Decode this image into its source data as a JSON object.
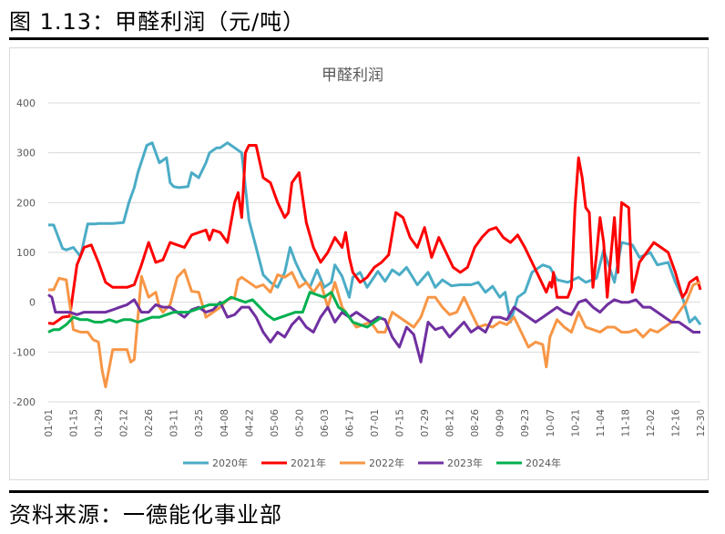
{
  "figure": {
    "title": "图 1.13：甲醛利润（元/吨）",
    "source": "资料来源：一德能化事业部"
  },
  "chart_data": {
    "type": "line",
    "title": "甲醛利润",
    "xlabel": "",
    "ylabel": "",
    "ylim": [
      -200,
      400
    ],
    "yticks": [
      -200,
      -100,
      0,
      100,
      200,
      300,
      400
    ],
    "xticks": [
      "01-01",
      "01-15",
      "01-29",
      "02-12",
      "02-26",
      "03-11",
      "03-25",
      "04-08",
      "04-22",
      "05-06",
      "05-20",
      "06-03",
      "06-17",
      "07-01",
      "07-15",
      "07-29",
      "08-12",
      "08-26",
      "09-09",
      "09-23",
      "10-07",
      "10-21",
      "11-04",
      "11-18",
      "12-02",
      "12-16",
      "12-30"
    ],
    "x_unit": "day-of-year index (0 = 01-01, 364 = 12-30)",
    "legend_position": "bottom",
    "series": [
      {
        "name": "2020年",
        "color": "#4BACC6",
        "x": [
          0,
          3,
          8,
          10,
          14,
          18,
          22,
          26,
          28,
          32,
          36,
          42,
          45,
          48,
          50,
          55,
          58,
          62,
          66,
          68,
          70,
          73,
          78,
          80,
          84,
          88,
          90,
          94,
          96,
          100,
          104,
          108,
          112,
          116,
          120,
          124,
          128,
          132,
          135,
          138,
          142,
          146,
          150,
          154,
          158,
          160,
          164,
          168,
          170,
          174,
          178,
          184,
          188,
          192,
          196,
          200,
          206,
          212,
          216,
          220,
          225,
          230,
          236,
          240,
          244,
          248,
          252,
          255,
          258,
          262,
          266,
          270,
          276,
          280,
          284,
          290,
          296,
          300,
          306,
          310,
          316,
          320,
          326,
          330,
          336,
          340,
          346,
          350,
          354,
          358,
          361,
          364
        ],
        "values": [
          155,
          155,
          108,
          105,
          110,
          92,
          157,
          157,
          158,
          158,
          158,
          160,
          200,
          230,
          260,
          315,
          320,
          280,
          290,
          240,
          232,
          230,
          232,
          260,
          250,
          280,
          300,
          310,
          310,
          320,
          310,
          300,
          165,
          110,
          55,
          40,
          30,
          60,
          110,
          80,
          50,
          30,
          65,
          30,
          40,
          75,
          52,
          10,
          50,
          60,
          30,
          62,
          42,
          65,
          55,
          70,
          35,
          60,
          30,
          45,
          33,
          35,
          35,
          40,
          20,
          32,
          10,
          20,
          -40,
          10,
          20,
          60,
          75,
          70,
          45,
          40,
          50,
          40,
          48,
          105,
          40,
          120,
          115,
          90,
          100,
          75,
          80,
          40,
          10,
          -40,
          -30,
          -45
        ]
      },
      {
        "name": "2021年",
        "color": "#FF0000",
        "x": [
          0,
          3,
          8,
          12,
          16,
          20,
          24,
          28,
          32,
          36,
          40,
          44,
          48,
          52,
          56,
          60,
          64,
          68,
          72,
          76,
          80,
          84,
          88,
          90,
          92,
          96,
          100,
          104,
          106,
          108,
          110,
          112,
          116,
          120,
          124,
          128,
          132,
          134,
          136,
          140,
          144,
          148,
          152,
          156,
          160,
          164,
          166,
          168,
          170,
          174,
          178,
          182,
          186,
          190,
          194,
          198,
          202,
          206,
          210,
          214,
          218,
          222,
          226,
          230,
          234,
          238,
          242,
          246,
          250,
          254,
          258,
          262,
          266,
          270,
          274,
          278,
          280,
          281,
          282,
          284,
          286,
          288,
          290,
          292,
          294,
          296,
          298,
          300,
          302,
          304,
          306,
          308,
          310,
          312,
          314,
          316,
          318,
          320,
          322,
          324,
          326,
          330,
          334,
          338,
          342,
          346,
          350,
          354,
          356,
          358,
          360,
          362,
          364
        ],
        "values": [
          -42,
          -43,
          -30,
          -28,
          75,
          110,
          115,
          80,
          40,
          30,
          30,
          30,
          35,
          75,
          120,
          80,
          85,
          120,
          115,
          110,
          135,
          140,
          145,
          125,
          145,
          140,
          120,
          200,
          220,
          170,
          300,
          315,
          315,
          250,
          240,
          200,
          170,
          180,
          240,
          260,
          160,
          110,
          80,
          100,
          130,
          110,
          140,
          90,
          60,
          40,
          50,
          70,
          80,
          95,
          180,
          170,
          130,
          110,
          150,
          90,
          130,
          100,
          70,
          60,
          70,
          110,
          130,
          145,
          150,
          130,
          120,
          135,
          110,
          80,
          50,
          20,
          40,
          30,
          60,
          10,
          10,
          10,
          10,
          30,
          190,
          290,
          250,
          190,
          180,
          30,
          95,
          170,
          120,
          10,
          90,
          170,
          60,
          200,
          195,
          190,
          20,
          80,
          100,
          120,
          110,
          100,
          60,
          10,
          20,
          40,
          45,
          50,
          25
        ]
      },
      {
        "name": "2022年",
        "color": "#F79646",
        "x": [
          0,
          3,
          6,
          10,
          14,
          18,
          22,
          25,
          28,
          30,
          32,
          36,
          40,
          44,
          46,
          48,
          52,
          56,
          60,
          62,
          64,
          68,
          72,
          76,
          80,
          84,
          88,
          92,
          96,
          100,
          104,
          106,
          108,
          112,
          116,
          120,
          124,
          128,
          132,
          136,
          140,
          144,
          148,
          152,
          156,
          160,
          164,
          168,
          172,
          176,
          180,
          184,
          188,
          192,
          196,
          200,
          204,
          208,
          212,
          216,
          220,
          224,
          228,
          232,
          236,
          240,
          244,
          248,
          252,
          256,
          260,
          264,
          268,
          272,
          276,
          278,
          280,
          284,
          288,
          292,
          296,
          300,
          304,
          308,
          312,
          316,
          320,
          324,
          328,
          332,
          336,
          340,
          344,
          348,
          352,
          356,
          360,
          364
        ],
        "values": [
          25,
          25,
          48,
          45,
          -55,
          -60,
          -60,
          -75,
          -80,
          -135,
          -170,
          -95,
          -95,
          -95,
          -120,
          -115,
          52,
          10,
          20,
          -10,
          -20,
          -5,
          50,
          65,
          22,
          20,
          -30,
          -20,
          -10,
          5,
          10,
          45,
          50,
          40,
          30,
          35,
          20,
          55,
          50,
          60,
          30,
          40,
          20,
          40,
          -10,
          40,
          -10,
          -30,
          -50,
          -45,
          -40,
          -60,
          -60,
          -20,
          -30,
          -40,
          -50,
          -30,
          10,
          10,
          -10,
          -25,
          -20,
          10,
          -20,
          -50,
          -45,
          -50,
          -40,
          -45,
          -30,
          -60,
          -90,
          -80,
          -85,
          -130,
          -70,
          -35,
          -50,
          -60,
          -20,
          -50,
          -55,
          -60,
          -50,
          -50,
          -60,
          -60,
          -55,
          -70,
          -55,
          -60,
          -50,
          -40,
          -20,
          0,
          35,
          40
        ]
      },
      {
        "name": "2023年",
        "color": "#7030A0",
        "x": [
          0,
          2,
          4,
          8,
          12,
          16,
          20,
          24,
          28,
          32,
          36,
          40,
          44,
          48,
          52,
          56,
          60,
          64,
          68,
          72,
          76,
          80,
          84,
          88,
          92,
          96,
          100,
          104,
          108,
          112,
          116,
          120,
          124,
          128,
          132,
          136,
          140,
          144,
          148,
          152,
          156,
          160,
          164,
          168,
          172,
          176,
          180,
          184,
          188,
          192,
          196,
          200,
          204,
          208,
          212,
          216,
          220,
          224,
          228,
          232,
          236,
          240,
          244,
          248,
          252,
          256,
          260,
          264,
          268,
          272,
          276,
          280,
          284,
          288,
          292,
          296,
          300,
          304,
          308,
          312,
          316,
          320,
          324,
          328,
          332,
          336,
          340,
          344,
          348,
          352,
          356,
          360,
          364
        ],
        "values": [
          15,
          10,
          -20,
          -20,
          -20,
          -25,
          -20,
          -20,
          -20,
          -20,
          -15,
          -10,
          -5,
          5,
          -20,
          -20,
          -5,
          -10,
          -10,
          -20,
          -30,
          -15,
          -10,
          -20,
          -15,
          0,
          -30,
          -25,
          -10,
          -10,
          -30,
          -60,
          -80,
          -60,
          -70,
          -45,
          -30,
          -50,
          -60,
          -30,
          -10,
          -40,
          -20,
          -30,
          -20,
          -30,
          -40,
          -30,
          -35,
          -70,
          -90,
          -50,
          -65,
          -120,
          -40,
          -55,
          -50,
          -70,
          -55,
          -40,
          -60,
          -50,
          -60,
          -30,
          -30,
          -35,
          -10,
          -20,
          -30,
          -40,
          -30,
          -20,
          -10,
          -20,
          -25,
          0,
          5,
          -10,
          -20,
          -5,
          5,
          0,
          0,
          5,
          -10,
          -10,
          -20,
          -30,
          -40,
          -40,
          -50,
          -60,
          -60
        ]
      },
      {
        "name": "2024年",
        "color": "#00B050",
        "x": [
          0,
          3,
          6,
          10,
          14,
          18,
          22,
          26,
          30,
          34,
          38,
          42,
          46,
          50,
          54,
          58,
          62,
          66,
          70,
          74,
          78,
          82,
          86,
          90,
          94,
          98,
          102,
          106,
          110,
          114,
          118,
          122,
          126,
          130,
          134,
          138,
          142,
          146,
          150,
          154,
          158,
          162,
          166,
          170,
          174,
          178,
          182,
          186
        ],
        "values": [
          -60,
          -55,
          -55,
          -45,
          -30,
          -35,
          -35,
          -40,
          -40,
          -35,
          -40,
          -35,
          -35,
          -40,
          -35,
          -30,
          -30,
          -25,
          -20,
          -20,
          -20,
          -15,
          -10,
          -5,
          -5,
          0,
          10,
          5,
          0,
          5,
          -10,
          -25,
          -35,
          -30,
          -25,
          -20,
          -20,
          20,
          15,
          10,
          20,
          -10,
          -20,
          -40,
          -45,
          -50,
          -40,
          -30
        ]
      }
    ]
  }
}
